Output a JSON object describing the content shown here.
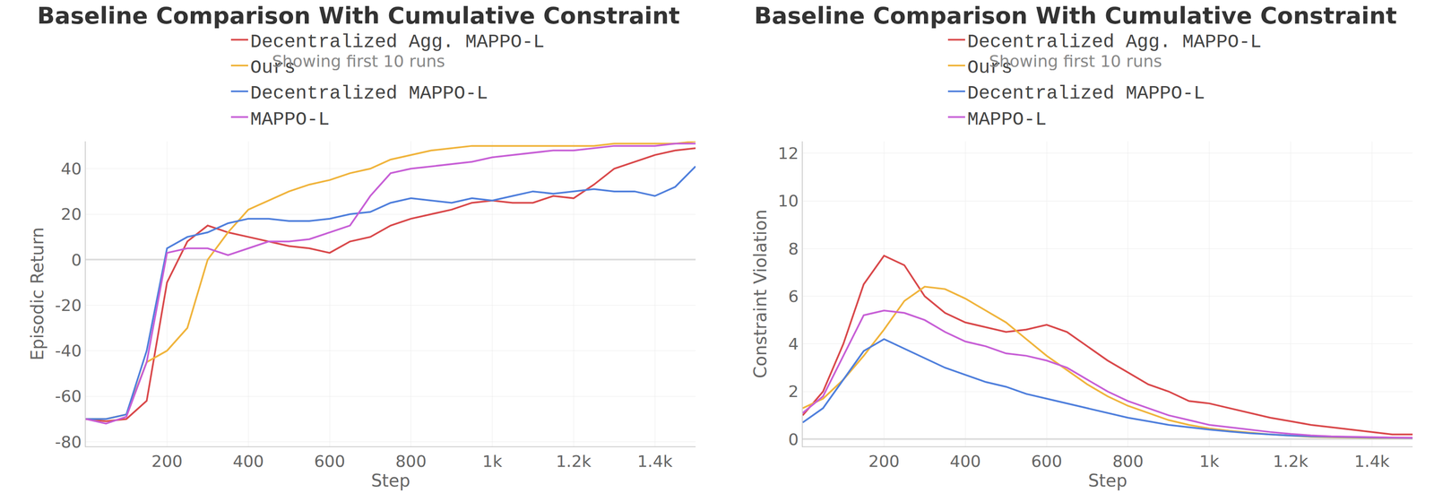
{
  "chart_data": [
    {
      "type": "line",
      "title": "Baseline Comparison With Cumulative Constraint",
      "subtitle": "Showing first 10 runs",
      "x_label": "Step",
      "y_label": "Episodic Return",
      "x": [
        0,
        50,
        100,
        150,
        200,
        250,
        300,
        350,
        400,
        450,
        500,
        550,
        600,
        650,
        700,
        750,
        800,
        850,
        900,
        950,
        1000,
        1050,
        1100,
        1150,
        1200,
        1250,
        1300,
        1350,
        1400,
        1450,
        1500
      ],
      "series": [
        {
          "name": "Decentralized Agg. MAPPO-L",
          "color": "#d9484a",
          "values": [
            -70,
            -71,
            -70,
            -62,
            -10,
            8,
            15,
            12,
            10,
            8,
            6,
            5,
            3,
            8,
            10,
            15,
            18,
            20,
            22,
            25,
            26,
            25,
            25,
            28,
            27,
            33,
            40,
            43,
            46,
            48,
            49
          ]
        },
        {
          "name": "Ours",
          "color": "#f0b43c",
          "values": [
            -70,
            -70,
            -68,
            -45,
            -40,
            -30,
            0,
            12,
            22,
            26,
            30,
            33,
            35,
            38,
            40,
            44,
            46,
            48,
            49,
            50,
            50,
            50,
            50,
            50,
            50,
            50,
            51,
            51,
            51,
            51,
            52
          ]
        },
        {
          "name": "Decentralized MAPPO-L",
          "color": "#4f7fdc",
          "values": [
            -70,
            -70,
            -68,
            -40,
            5,
            10,
            12,
            16,
            18,
            18,
            17,
            17,
            18,
            20,
            21,
            25,
            27,
            26,
            25,
            27,
            26,
            28,
            30,
            29,
            30,
            31,
            30,
            30,
            28,
            32,
            41
          ]
        },
        {
          "name": "MAPPO-L",
          "color": "#c75fd6",
          "values": [
            -70,
            -72,
            -69,
            -45,
            3,
            5,
            5,
            2,
            5,
            8,
            8,
            9,
            12,
            15,
            28,
            38,
            40,
            41,
            42,
            43,
            45,
            46,
            47,
            48,
            48,
            49,
            50,
            50,
            50,
            51,
            51
          ]
        }
      ],
      "xlim": [
        0,
        1500
      ],
      "xticks": [
        200,
        400,
        600,
        800,
        {
          "value": 1000,
          "label": "1k"
        },
        {
          "value": 1200,
          "label": "1.2k"
        },
        {
          "value": 1400,
          "label": "1.4k"
        }
      ],
      "ylim": [
        -82,
        52
      ],
      "yticks": [
        -80,
        -60,
        -40,
        -20,
        0,
        20,
        40
      ],
      "grid": true,
      "legend": "top"
    },
    {
      "type": "line",
      "title": "Baseline Comparison With Cumulative Constraint",
      "subtitle": "Showing first 10 runs",
      "x_label": "Step",
      "y_label": "Constraint Violation",
      "x": [
        0,
        50,
        100,
        150,
        200,
        250,
        300,
        350,
        400,
        450,
        500,
        550,
        600,
        650,
        700,
        750,
        800,
        850,
        900,
        950,
        1000,
        1050,
        1100,
        1150,
        1200,
        1250,
        1300,
        1350,
        1400,
        1450,
        1500
      ],
      "series": [
        {
          "name": "Decentralized Agg. MAPPO-L",
          "color": "#d9484a",
          "values": [
            1.0,
            2.0,
            4.0,
            6.5,
            7.7,
            7.3,
            6.0,
            5.3,
            4.9,
            4.7,
            4.5,
            4.6,
            4.8,
            4.5,
            3.9,
            3.3,
            2.8,
            2.3,
            2.0,
            1.6,
            1.5,
            1.3,
            1.1,
            0.9,
            0.75,
            0.6,
            0.5,
            0.4,
            0.3,
            0.2,
            0.2
          ]
        },
        {
          "name": "Ours",
          "color": "#f0b43c",
          "values": [
            1.3,
            1.7,
            2.5,
            3.5,
            4.6,
            5.8,
            6.4,
            6.3,
            5.9,
            5.4,
            4.9,
            4.2,
            3.5,
            2.9,
            2.3,
            1.8,
            1.4,
            1.1,
            0.8,
            0.6,
            0.45,
            0.35,
            0.28,
            0.2,
            0.15,
            0.1,
            0.08,
            0.06,
            0.05,
            0.05,
            0.05
          ]
        },
        {
          "name": "Decentralized MAPPO-L",
          "color": "#4f7fdc",
          "values": [
            0.7,
            1.3,
            2.5,
            3.7,
            4.2,
            3.8,
            3.4,
            3.0,
            2.7,
            2.4,
            2.2,
            1.9,
            1.7,
            1.5,
            1.3,
            1.1,
            0.9,
            0.75,
            0.6,
            0.5,
            0.4,
            0.32,
            0.25,
            0.2,
            0.15,
            0.12,
            0.1,
            0.08,
            0.07,
            0.06,
            0.05
          ]
        },
        {
          "name": "MAPPO-L",
          "color": "#c75fd6",
          "values": [
            1.1,
            1.8,
            3.5,
            5.2,
            5.4,
            5.3,
            5.0,
            4.5,
            4.1,
            3.9,
            3.6,
            3.5,
            3.3,
            3.0,
            2.5,
            2.0,
            1.6,
            1.3,
            1.0,
            0.8,
            0.6,
            0.5,
            0.4,
            0.3,
            0.22,
            0.16,
            0.12,
            0.1,
            0.08,
            0.07,
            0.06
          ]
        }
      ],
      "xlim": [
        0,
        1500
      ],
      "xticks": [
        200,
        400,
        600,
        800,
        {
          "value": 1000,
          "label": "1k"
        },
        {
          "value": 1200,
          "label": "1.2k"
        },
        {
          "value": 1400,
          "label": "1.4k"
        }
      ],
      "ylim": [
        -0.3,
        12.5
      ],
      "yticks": [
        0,
        2,
        4,
        6,
        8,
        10,
        12
      ],
      "grid": true,
      "legend": "top"
    }
  ]
}
